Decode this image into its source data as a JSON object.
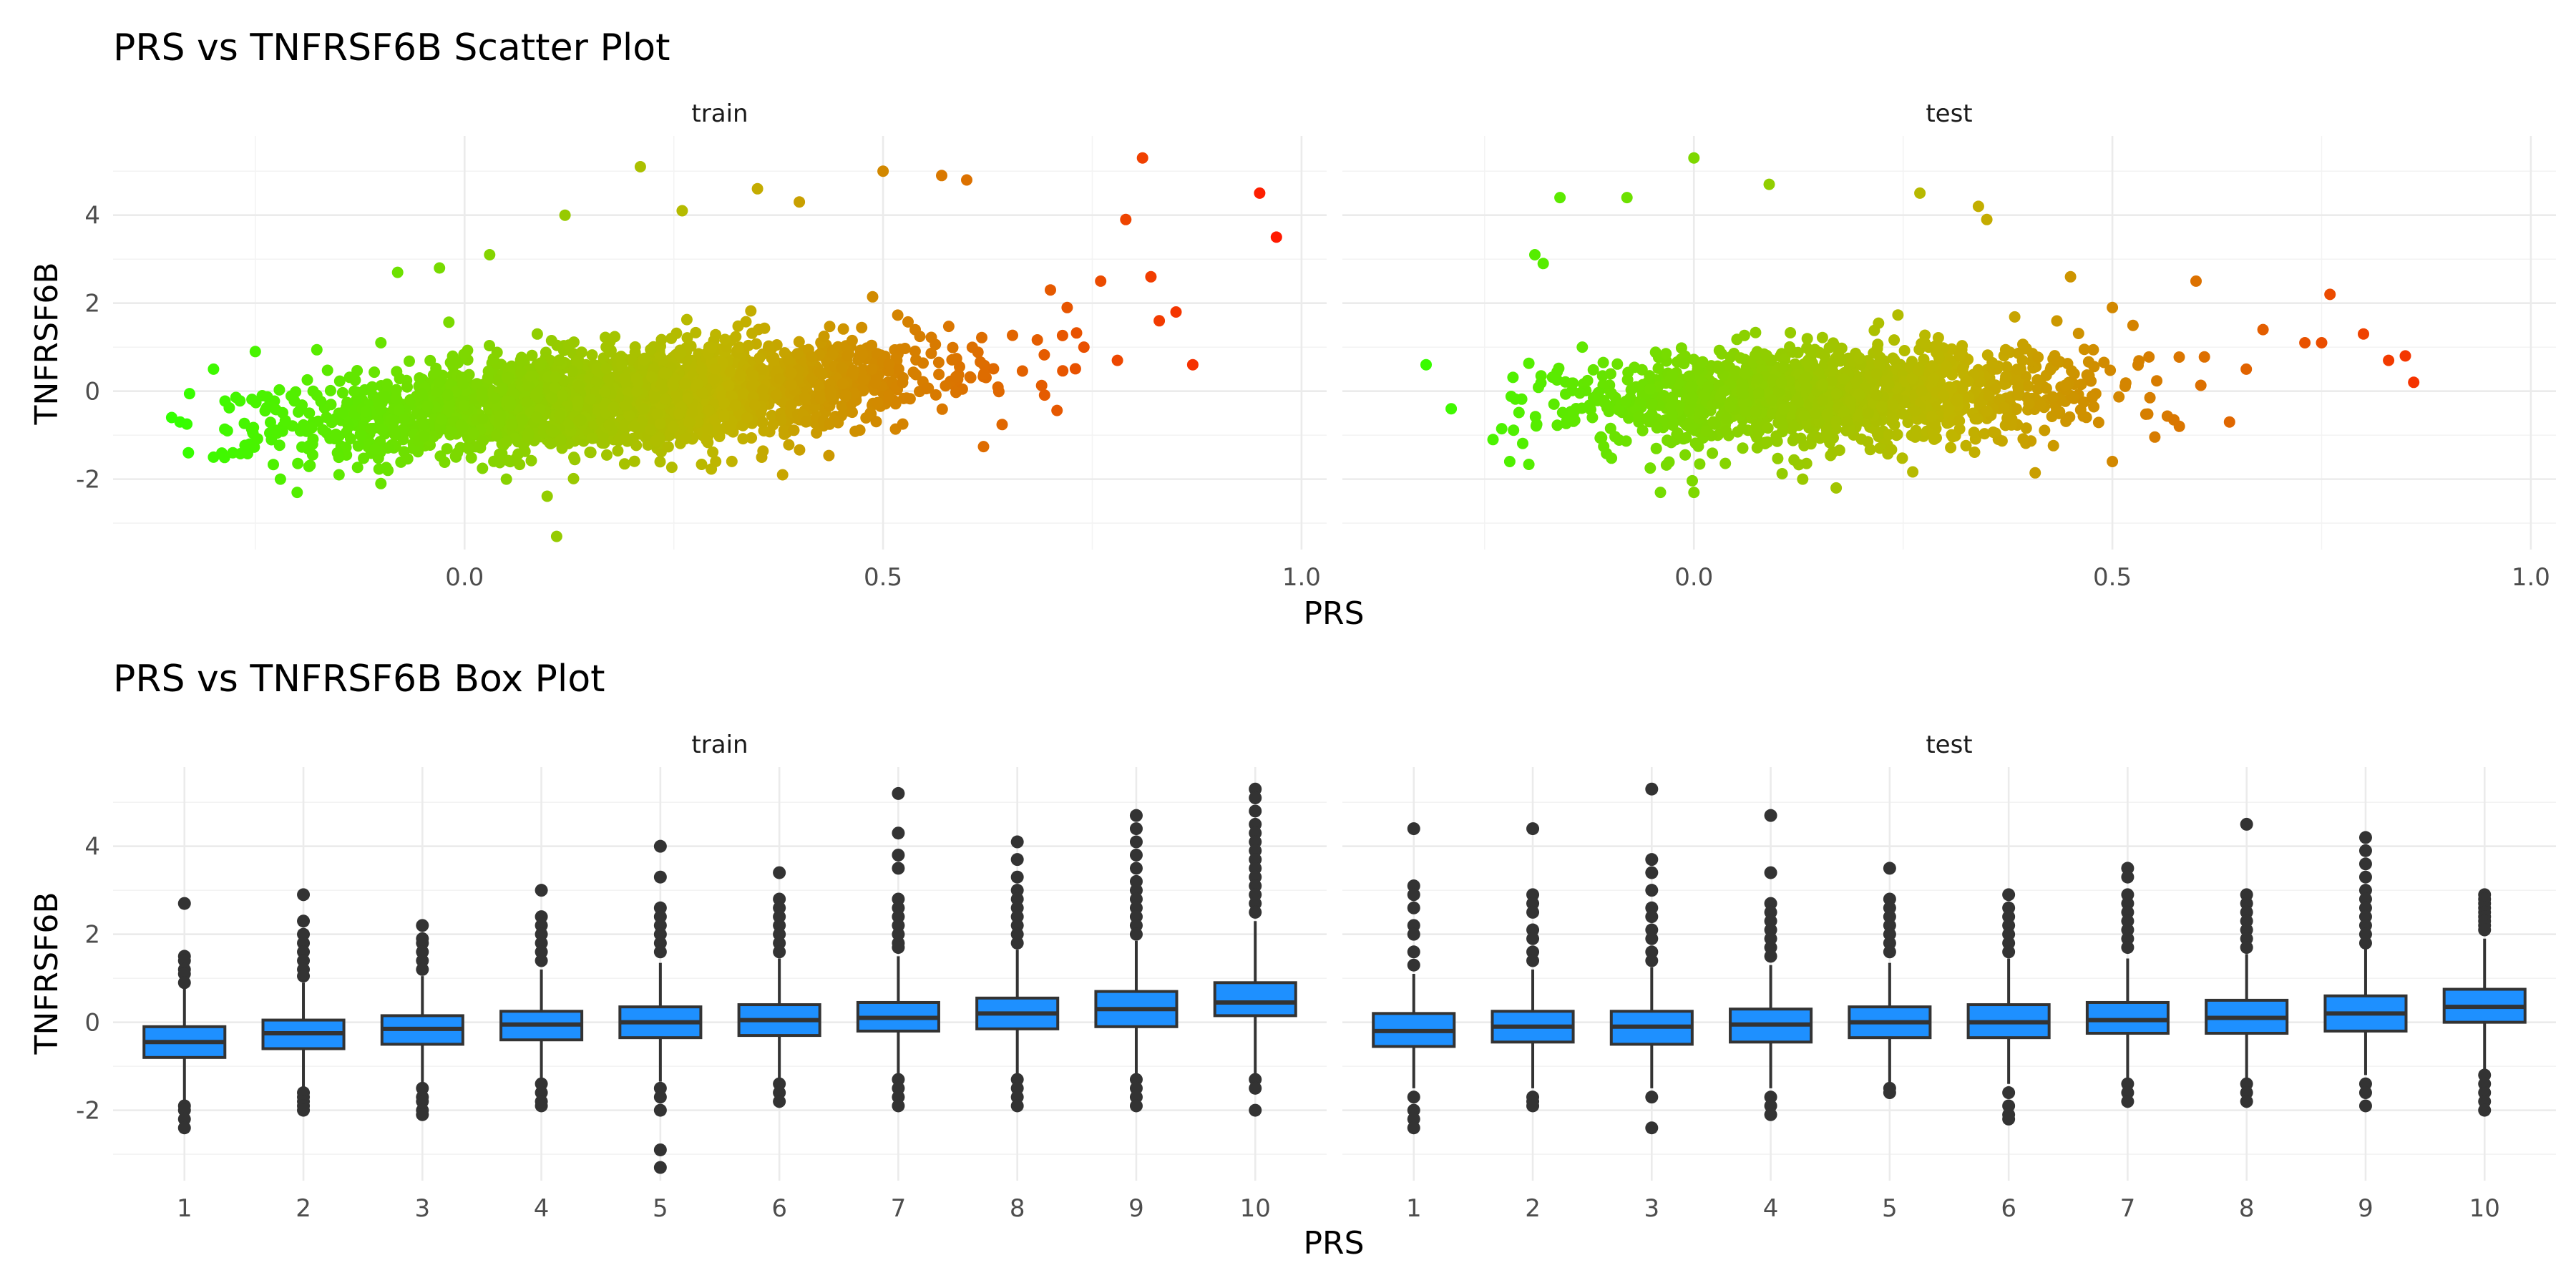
{
  "chart_data": [
    {
      "type": "scatter",
      "title": "PRS vs TNFRSF6B Scatter Plot",
      "xlabel": "PRS",
      "ylabel": "TNFRSF6B",
      "xlim": [
        -0.42,
        1.03
      ],
      "ylim": [
        -3.6,
        5.8
      ],
      "x_ticks": [
        0.0,
        0.5,
        1.0
      ],
      "x_tick_labels": [
        "0.0",
        "0.5",
        "1.0"
      ],
      "y_ticks": [
        -2,
        0,
        2,
        4
      ],
      "y_tick_labels": [
        "-2",
        "0",
        "2",
        "4"
      ],
      "grid": true,
      "color_gradient": {
        "low": "#33ff00",
        "mid": "#c0b500",
        "high": "#ff1a00"
      },
      "facets": [
        {
          "label": "train",
          "bulk": {
            "x_min": -0.35,
            "x_max": 0.82,
            "x_center": 0.19,
            "x_sd": 0.18,
            "slope": 1.35,
            "intercept": -0.4,
            "y_sd": 0.55
          },
          "points": [
            {
              "x": 0.81,
              "y": 5.3
            },
            {
              "x": 0.95,
              "y": 4.5
            },
            {
              "x": 0.97,
              "y": 3.5
            },
            {
              "x": 0.21,
              "y": 5.1
            },
            {
              "x": 0.5,
              "y": 5.0
            },
            {
              "x": 0.57,
              "y": 4.9
            },
            {
              "x": 0.6,
              "y": 4.8
            },
            {
              "x": 0.35,
              "y": 4.6
            },
            {
              "x": 0.4,
              "y": 4.3
            },
            {
              "x": 0.79,
              "y": 3.9
            },
            {
              "x": 0.82,
              "y": 2.6
            },
            {
              "x": 0.87,
              "y": 0.6
            },
            {
              "x": 0.85,
              "y": 1.8
            },
            {
              "x": 0.83,
              "y": 1.6
            },
            {
              "x": 0.76,
              "y": 2.5
            },
            {
              "x": 0.74,
              "y": 1.0
            },
            {
              "x": 0.72,
              "y": 1.9
            },
            {
              "x": 0.7,
              "y": 2.3
            },
            {
              "x": 0.78,
              "y": 0.7
            },
            {
              "x": 0.12,
              "y": 4.0
            },
            {
              "x": 0.26,
              "y": 4.1
            },
            {
              "x": 0.03,
              "y": 3.1
            },
            {
              "x": -0.08,
              "y": 2.7
            },
            {
              "x": -0.03,
              "y": 2.8
            },
            {
              "x": -0.1,
              "y": 1.1
            },
            {
              "x": -0.25,
              "y": 0.9
            },
            {
              "x": -0.3,
              "y": 0.5
            },
            {
              "x": -0.35,
              "y": -0.6
            },
            {
              "x": -0.34,
              "y": -0.7
            },
            {
              "x": -0.33,
              "y": -1.4
            },
            {
              "x": -0.3,
              "y": -1.5
            },
            {
              "x": -0.2,
              "y": -2.3
            },
            {
              "x": -0.22,
              "y": -2.0
            },
            {
              "x": -0.1,
              "y": -2.1
            },
            {
              "x": 0.05,
              "y": -2.0
            },
            {
              "x": 0.11,
              "y": -3.3
            },
            {
              "x": 0.38,
              "y": -1.9
            },
            {
              "x": 0.3,
              "y": -1.6
            },
            {
              "x": -0.15,
              "y": -1.9
            }
          ]
        },
        {
          "label": "test",
          "bulk": {
            "x_min": -0.23,
            "x_max": 0.7,
            "x_center": 0.16,
            "x_sd": 0.15,
            "slope": 0.55,
            "intercept": -0.2,
            "y_sd": 0.55
          },
          "points": [
            {
              "x": 0.0,
              "y": 5.3
            },
            {
              "x": 0.09,
              "y": 4.7
            },
            {
              "x": -0.16,
              "y": 4.4
            },
            {
              "x": -0.08,
              "y": 4.4
            },
            {
              "x": 0.27,
              "y": 4.5
            },
            {
              "x": 0.34,
              "y": 4.2
            },
            {
              "x": 0.35,
              "y": 3.9
            },
            {
              "x": -0.19,
              "y": 3.1
            },
            {
              "x": -0.18,
              "y": 2.9
            },
            {
              "x": -0.32,
              "y": 0.6
            },
            {
              "x": -0.29,
              "y": -0.4
            },
            {
              "x": -0.24,
              "y": -1.1
            },
            {
              "x": -0.22,
              "y": -1.6
            },
            {
              "x": -0.04,
              "y": -2.3
            },
            {
              "x": 0.0,
              "y": -2.3
            },
            {
              "x": 0.17,
              "y": -2.2
            },
            {
              "x": 0.13,
              "y": -2.0
            },
            {
              "x": 0.5,
              "y": -1.6
            },
            {
              "x": 0.5,
              "y": 1.9
            },
            {
              "x": 0.6,
              "y": 2.5
            },
            {
              "x": 0.76,
              "y": 2.2
            },
            {
              "x": 0.8,
              "y": 1.3
            },
            {
              "x": 0.83,
              "y": 0.7
            },
            {
              "x": 0.85,
              "y": 0.8
            },
            {
              "x": 0.86,
              "y": 0.2
            },
            {
              "x": 0.75,
              "y": 1.1
            },
            {
              "x": 0.73,
              "y": 1.1
            },
            {
              "x": 0.68,
              "y": 1.4
            },
            {
              "x": 0.66,
              "y": 0.5
            },
            {
              "x": 0.64,
              "y": -0.7
            },
            {
              "x": 0.58,
              "y": -0.8
            },
            {
              "x": 0.45,
              "y": 2.6
            }
          ]
        }
      ]
    },
    {
      "type": "box",
      "title": "PRS vs TNFRSF6B Box Plot",
      "xlabel": "PRS",
      "ylabel": "TNFRSF6B",
      "categories": [
        "1",
        "2",
        "3",
        "4",
        "5",
        "6",
        "7",
        "8",
        "9",
        "10"
      ],
      "ylim": [
        -3.6,
        5.8
      ],
      "y_ticks": [
        -2,
        0,
        2,
        4
      ],
      "y_tick_labels": [
        "-2",
        "0",
        "2",
        "4"
      ],
      "grid": true,
      "box_color": "#1e90ff",
      "facets": [
        {
          "label": "train",
          "boxes": [
            {
              "q1": -0.8,
              "median": -0.45,
              "q3": -0.1,
              "lower": -1.8,
              "upper": 0.8,
              "outliers": [
                2.7,
                1.5,
                1.4,
                1.2,
                1.1,
                0.9,
                -1.9,
                -2.0,
                -2.2,
                -2.4
              ]
            },
            {
              "q1": -0.6,
              "median": -0.25,
              "q3": 0.05,
              "lower": -1.5,
              "upper": 0.9,
              "outliers": [
                2.9,
                2.3,
                2.0,
                1.8,
                1.6,
                1.4,
                1.2,
                1.05,
                -1.6,
                -1.7,
                -1.8,
                -1.9,
                -2.0
              ]
            },
            {
              "q1": -0.5,
              "median": -0.15,
              "q3": 0.15,
              "lower": -1.4,
              "upper": 1.05,
              "outliers": [
                2.2,
                1.9,
                1.8,
                1.6,
                1.4,
                1.2,
                -1.5,
                -1.7,
                -1.8,
                -2.0,
                -2.1
              ]
            },
            {
              "q1": -0.4,
              "median": -0.05,
              "q3": 0.25,
              "lower": -1.3,
              "upper": 1.2,
              "outliers": [
                3.0,
                2.4,
                2.2,
                2.0,
                1.8,
                1.6,
                1.4,
                -1.4,
                -1.6,
                -1.8,
                -1.9
              ]
            },
            {
              "q1": -0.35,
              "median": 0.0,
              "q3": 0.35,
              "lower": -1.35,
              "upper": 1.35,
              "outliers": [
                4.0,
                3.3,
                2.6,
                2.4,
                2.2,
                2.0,
                1.8,
                1.6,
                -1.5,
                -1.7,
                -2.0,
                -2.9,
                -3.3
              ]
            },
            {
              "q1": -0.3,
              "median": 0.05,
              "q3": 0.4,
              "lower": -1.3,
              "upper": 1.45,
              "outliers": [
                3.4,
                2.8,
                2.6,
                2.4,
                2.2,
                2.0,
                1.8,
                1.6,
                -1.4,
                -1.6,
                -1.8
              ]
            },
            {
              "q1": -0.2,
              "median": 0.1,
              "q3": 0.45,
              "lower": -1.2,
              "upper": 1.5,
              "outliers": [
                5.2,
                4.3,
                3.8,
                3.5,
                2.8,
                2.6,
                2.4,
                2.2,
                2.0,
                1.8,
                1.7,
                -1.3,
                -1.5,
                -1.7,
                -1.9
              ]
            },
            {
              "q1": -0.15,
              "median": 0.2,
              "q3": 0.55,
              "lower": -1.2,
              "upper": 1.65,
              "outliers": [
                4.1,
                3.7,
                3.3,
                3.0,
                2.8,
                2.6,
                2.4,
                2.2,
                2.0,
                1.8,
                -1.3,
                -1.5,
                -1.7,
                -1.9
              ]
            },
            {
              "q1": -0.1,
              "median": 0.3,
              "q3": 0.7,
              "lower": -1.2,
              "upper": 1.85,
              "outliers": [
                4.7,
                4.4,
                4.1,
                3.8,
                3.5,
                3.2,
                3.0,
                2.8,
                2.6,
                2.4,
                2.2,
                2.0,
                -1.3,
                -1.5,
                -1.7,
                -1.9
              ]
            },
            {
              "q1": 0.15,
              "median": 0.45,
              "q3": 0.9,
              "lower": -1.2,
              "upper": 2.3,
              "outliers": [
                5.3,
                5.1,
                4.8,
                4.5,
                4.3,
                4.1,
                3.9,
                3.7,
                3.5,
                3.3,
                3.1,
                2.9,
                2.7,
                2.5,
                -1.3,
                -1.5,
                -2.0
              ]
            }
          ]
        },
        {
          "label": "test",
          "boxes": [
            {
              "q1": -0.55,
              "median": -0.2,
              "q3": 0.2,
              "lower": -1.5,
              "upper": 1.1,
              "outliers": [
                4.4,
                3.1,
                2.9,
                2.6,
                2.2,
                2.0,
                1.6,
                1.3,
                -1.7,
                -2.0,
                -2.2,
                -2.4
              ]
            },
            {
              "q1": -0.45,
              "median": -0.1,
              "q3": 0.25,
              "lower": -1.5,
              "upper": 1.2,
              "outliers": [
                4.4,
                2.9,
                2.7,
                2.5,
                2.1,
                1.9,
                1.6,
                1.4,
                -1.7,
                -1.8,
                -1.9
              ]
            },
            {
              "q1": -0.5,
              "median": -0.1,
              "q3": 0.25,
              "lower": -1.5,
              "upper": 1.25,
              "outliers": [
                5.3,
                3.7,
                3.4,
                3.0,
                2.6,
                2.4,
                2.1,
                1.9,
                1.6,
                1.4,
                -1.7,
                -2.4
              ]
            },
            {
              "q1": -0.45,
              "median": -0.05,
              "q3": 0.3,
              "lower": -1.5,
              "upper": 1.3,
              "outliers": [
                4.7,
                3.4,
                2.7,
                2.5,
                2.3,
                2.1,
                1.9,
                1.7,
                1.5,
                -1.7,
                -1.9,
                -2.1
              ]
            },
            {
              "q1": -0.35,
              "median": 0.0,
              "q3": 0.35,
              "lower": -1.4,
              "upper": 1.35,
              "outliers": [
                3.5,
                2.8,
                2.6,
                2.4,
                2.2,
                2.0,
                1.8,
                1.6,
                -1.5,
                -1.6
              ]
            },
            {
              "q1": -0.35,
              "median": 0.0,
              "q3": 0.4,
              "lower": -1.4,
              "upper": 1.45,
              "outliers": [
                2.9,
                2.6,
                2.4,
                2.2,
                2.0,
                1.8,
                1.6,
                -1.6,
                -1.9,
                -2.1,
                -2.2
              ]
            },
            {
              "q1": -0.25,
              "median": 0.05,
              "q3": 0.45,
              "lower": -1.3,
              "upper": 1.45,
              "outliers": [
                3.5,
                3.3,
                2.9,
                2.7,
                2.5,
                2.3,
                2.1,
                1.9,
                1.7,
                -1.4,
                -1.6,
                -1.8
              ]
            },
            {
              "q1": -0.25,
              "median": 0.1,
              "q3": 0.5,
              "lower": -1.3,
              "upper": 1.55,
              "outliers": [
                4.5,
                2.9,
                2.7,
                2.5,
                2.3,
                2.1,
                1.9,
                1.7,
                -1.4,
                -1.6,
                -1.8
              ]
            },
            {
              "q1": -0.2,
              "median": 0.2,
              "q3": 0.6,
              "lower": -1.2,
              "upper": 1.7,
              "outliers": [
                4.2,
                3.9,
                3.6,
                3.3,
                3.0,
                2.8,
                2.6,
                2.4,
                2.2,
                2.0,
                1.8,
                -1.4,
                -1.6,
                -1.9
              ]
            },
            {
              "q1": 0.0,
              "median": 0.35,
              "q3": 0.75,
              "lower": -1.1,
              "upper": 1.9,
              "outliers": [
                2.9,
                2.8,
                2.7,
                2.6,
                2.5,
                2.4,
                2.3,
                2.2,
                2.1,
                -1.2,
                -1.4,
                -1.6,
                -1.8,
                -2.0
              ]
            }
          ]
        }
      ]
    }
  ]
}
